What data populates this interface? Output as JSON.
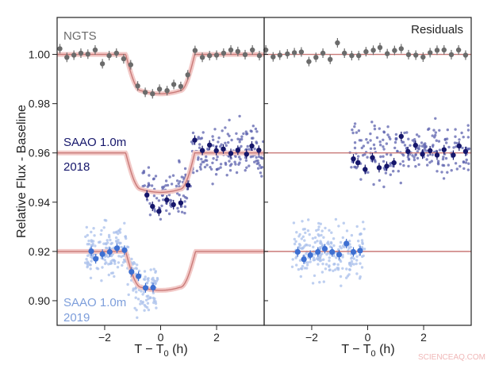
{
  "chart_data": [
    {
      "type": "scatter",
      "panel": "left",
      "ylabel": "Relative Flux - Baseline",
      "xlabel": "T − T",
      "xlabel_sub": "0",
      "xlabel_unit": " (h)",
      "xlim": [
        -3.7,
        3.7
      ],
      "ylim": [
        0.89,
        1.015
      ],
      "xticks": [
        -2,
        0,
        2
      ],
      "xtick_labels": [
        "−2",
        "0",
        "2"
      ],
      "yticks": [
        1.0,
        0.98,
        0.96,
        0.94,
        0.92,
        0.9
      ],
      "ytick_labels": [
        "1.00",
        "0.98",
        "0.96",
        "0.94",
        "0.92",
        "0.90"
      ],
      "grid": false,
      "series": [
        {
          "name": "NGTS",
          "color": "#6b6b6b",
          "x": [
            -3.6,
            -3.35,
            -3.1,
            -2.85,
            -2.6,
            -2.34,
            -2.08,
            -1.84,
            -1.58,
            -1.32,
            -1.07,
            -0.82,
            -0.55,
            -0.29,
            -0.04,
            0.23,
            0.47,
            0.72,
            0.97,
            1.23,
            1.49,
            1.75,
            2.0,
            2.25,
            2.51,
            2.76,
            3.02,
            3.28,
            3.53
          ],
          "y": [
            1.0023,
            0.9988,
            0.9997,
            1.0005,
            1.0001,
            1.0018,
            0.9962,
            0.9995,
            1.0005,
            0.9982,
            0.9958,
            0.9872,
            0.9846,
            0.984,
            0.9859,
            0.9853,
            0.9878,
            0.987,
            0.9917,
            1.0016,
            0.9988,
            0.9995,
            0.9997,
            1.0005,
            1.0018,
            1.0012,
            0.9999,
            1.0018,
            0.9995
          ],
          "model": {
            "baseline": 1.0,
            "depth": 0.016,
            "t1": -1.25,
            "t2": -0.7,
            "t3": 0.7,
            "t4": 1.22
          }
        },
        {
          "name": "SAAO 1.0m",
          "name2": "2018",
          "color": "#15166b",
          "scatter_color": "#5c62ad",
          "x": [
            -0.49,
            -0.29,
            -0.06,
            0.22,
            0.46,
            0.72,
            0.98,
            1.22,
            1.49,
            1.75,
            1.99,
            2.24,
            2.51,
            2.76,
            3.07,
            3.26,
            3.51
          ],
          "y": [
            0.9429,
            0.9383,
            0.9363,
            0.9409,
            0.939,
            0.9397,
            0.9469,
            0.9652,
            0.961,
            0.9632,
            0.9609,
            0.9616,
            0.9598,
            0.9611,
            0.9595,
            0.9628,
            0.9611
          ],
          "model": {
            "baseline": 0.96,
            "depth": 0.016,
            "t1": -1.25,
            "t2": -0.7,
            "t3": 0.7,
            "t4": 1.22
          }
        },
        {
          "name": "SAAO 1.0m",
          "name2": "2019",
          "color": "#3d6fd1",
          "label_color": "#7d9edb",
          "scatter_color": "#a8bfeb",
          "x": [
            -2.48,
            -2.32,
            -2.08,
            -1.82,
            -1.56,
            -1.29,
            -1.04,
            -0.79,
            -0.54,
            -0.27
          ],
          "y": [
            0.9201,
            0.917,
            0.9189,
            0.9198,
            0.9213,
            0.9205,
            0.9117,
            0.9099,
            0.9052,
            0.9053
          ],
          "model": {
            "baseline": 0.92,
            "depth": 0.0158,
            "t1": -1.25,
            "t2": -0.7,
            "t3": 0.7,
            "t4": 1.25
          }
        }
      ],
      "model_color": "#c97a78",
      "model_band_color": "#f2c9c7"
    },
    {
      "type": "scatter",
      "panel": "right",
      "title": "Residuals",
      "xlabel": "T − T",
      "xlabel_sub": "0",
      "xlabel_unit": " (h)",
      "xlim": [
        -3.7,
        3.7
      ],
      "ylim": [
        0.89,
        1.015
      ],
      "xticks": [
        -2,
        0,
        2
      ],
      "xtick_labels": [
        "−2",
        "0",
        "2"
      ],
      "yticks": [
        1.0,
        0.98,
        0.96,
        0.94,
        0.92,
        0.9
      ],
      "series": [
        {
          "name": "NGTS",
          "color": "#6b6b6b",
          "x": [
            -3.64,
            -3.38,
            -3.14,
            -2.87,
            -2.62,
            -2.37,
            -2.1,
            -1.85,
            -1.6,
            -1.34,
            -1.08,
            -0.83,
            -0.57,
            -0.32,
            -0.06,
            0.2,
            0.44,
            0.7,
            0.96,
            1.2,
            1.46,
            1.72,
            1.98,
            2.23,
            2.48,
            2.73,
            2.99,
            3.25,
            3.5
          ],
          "y": [
            1.0018,
            0.999,
            0.9997,
            1.0002,
            1.0007,
            1.001,
            0.9971,
            0.9988,
            1.0005,
            0.998,
            1.0047,
            1.0005,
            0.9995,
            0.9995,
            1.0011,
            1.0017,
            1.0028,
            1.0003,
            1.0016,
            1.0023,
            0.9999,
            0.9997,
            0.9989,
            1.0007,
            1.0017,
            1.0018,
            0.9999,
            1.0018,
            0.9997
          ],
          "baseline": 1.0
        },
        {
          "name": "SAAO 1.0m 2018",
          "color": "#15166b",
          "scatter_color": "#5c62ad",
          "x": [
            -0.51,
            -0.35,
            -0.09,
            0.17,
            0.41,
            0.68,
            0.94,
            1.2,
            1.44,
            1.71,
            1.96,
            2.23,
            2.48,
            2.73,
            3.06,
            3.27,
            3.5
          ],
          "y": [
            0.9576,
            0.956,
            0.9533,
            0.9581,
            0.954,
            0.9546,
            0.956,
            0.9667,
            0.9606,
            0.9631,
            0.9595,
            0.9609,
            0.9591,
            0.9613,
            0.9591,
            0.9628,
            0.9606
          ],
          "baseline": 0.96
        },
        {
          "name": "SAAO 1.0m 2019",
          "color": "#3d6fd1",
          "scatter_color": "#a8bfeb",
          "x": [
            -2.5,
            -2.28,
            -2.05,
            -1.78,
            -1.53,
            -1.27,
            -1.02,
            -0.76,
            -0.51,
            -0.27
          ],
          "y": [
            0.9198,
            0.9168,
            0.9185,
            0.9198,
            0.9211,
            0.9198,
            0.9187,
            0.9232,
            0.9198,
            0.9203
          ],
          "baseline": 0.92
        }
      ]
    }
  ],
  "watermark": "SCIENCEAQ.COM"
}
